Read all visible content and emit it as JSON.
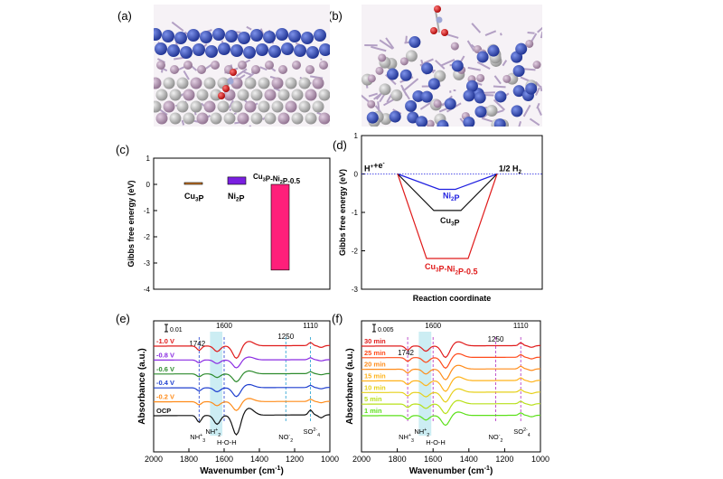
{
  "panels": {
    "a": {
      "label": "(a)"
    },
    "b": {
      "label": "(b)"
    }
  },
  "colors": {
    "cu_atom": "#2b47b5",
    "ni_atom": "#c2c2c2",
    "p_atom": "#b89cb8",
    "o_atom": "#e01b1b",
    "n_atom": "#8c9cc8"
  },
  "chart_data": [
    {
      "panel": "(c)",
      "type": "bar",
      "ylabel": "Gibbs free energy (eV)",
      "ylim": [
        -4,
        1
      ],
      "yticks": [
        -4,
        -3,
        -2,
        -1,
        0,
        1
      ],
      "categories": [
        "Cu3P",
        "Ni2P",
        "Cu3P-Ni2P-0.5"
      ],
      "category_labels": [
        {
          "main": "Cu",
          "sub": "3",
          "tail": "P"
        },
        {
          "main": "Ni",
          "sub": "2",
          "tail": "P"
        },
        {
          "main": "Cu",
          "sub": "3",
          "mid": "P-Ni",
          "sub2": "2",
          "tail": "P-0.5"
        }
      ],
      "values": [
        0.06,
        0.28,
        -3.27
      ],
      "bar_colors": [
        "#d9802a",
        "#7a1fe0",
        "#ff1f7a"
      ]
    },
    {
      "panel": "(d)",
      "type": "line",
      "ylabel": "Gibbs free energy (eV)",
      "xlabel": "Reaction coordinate",
      "ylim": [
        -3,
        1
      ],
      "yticks": [
        -3,
        -2,
        -1,
        0,
        1
      ],
      "start_label": {
        "main": "H",
        "sup": "+",
        "tail": "+e",
        "sup2": "-"
      },
      "end_label": {
        "main": "1/2 H",
        "sub": "2"
      },
      "series": [
        {
          "name": {
            "main": "Ni",
            "sub": "2",
            "tail": "P"
          },
          "color": "#1f1fe0",
          "min": -0.4
        },
        {
          "name": {
            "main": "Cu",
            "sub": "3",
            "tail": "P"
          },
          "color": "#111111",
          "min": -0.95
        },
        {
          "name": {
            "main": "Cu",
            "sub": "3",
            "mid": "P-Ni",
            "sub2": "2",
            "tail": "P-0.5"
          },
          "color": "#e01b1b",
          "min": -2.2
        }
      ]
    },
    {
      "panel": "(e)",
      "type": "line",
      "ylabel": "Absorbance (a.u.)",
      "xlabel": "Wavenumber (cm",
      "xlabel_sup": "-1",
      "xlabel_tail": ")",
      "xlim": [
        2000,
        1000
      ],
      "xticks": [
        2000,
        1800,
        1600,
        1400,
        1200,
        1000
      ],
      "scale_label": "0.01",
      "peak_labels": [
        "1742",
        "1600",
        "1250",
        "1110"
      ],
      "series": [
        {
          "name": "-1.0 V",
          "color": "#e01b1b"
        },
        {
          "name": "-0.8 V",
          "color": "#8a2be2"
        },
        {
          "name": "-0.6 V",
          "color": "#2e8b2e"
        },
        {
          "name": "-0.4 V",
          "color": "#1f3fcf"
        },
        {
          "name": "-0.2 V",
          "color": "#ff8c1a"
        },
        {
          "name": "OCP",
          "color": "#111111"
        }
      ],
      "bottom_labels": {
        "nh3": {
          "main": "NH",
          "sub": "3",
          "sup": "+"
        },
        "nh2": {
          "main": "NH",
          "sub": "2",
          "sup": "+"
        },
        "hoh": "H-O-H",
        "no2": {
          "main": "NO",
          "sub": "2",
          "sup": "-"
        },
        "so4": {
          "main": "SO",
          "sub": "4",
          "sup": "2-"
        }
      }
    },
    {
      "panel": "(f)",
      "type": "line",
      "ylabel": "Absorbance (a.u.)",
      "xlabel": "Wavenumber (cm",
      "xlabel_sup": "-1",
      "xlabel_tail": ")",
      "xlim": [
        2000,
        1000
      ],
      "xticks": [
        2000,
        1800,
        1600,
        1400,
        1200,
        1000
      ],
      "scale_label": "0.005",
      "peak_labels": [
        "1742",
        "1600",
        "1250",
        "1110"
      ],
      "series": [
        {
          "name": "30 min",
          "color": "#e01b1b"
        },
        {
          "name": "25 min",
          "color": "#ff4a1a"
        },
        {
          "name": "20 min",
          "color": "#ff8c1a"
        },
        {
          "name": "15 min",
          "color": "#ffb31a"
        },
        {
          "name": "10 min",
          "color": "#e6d01a"
        },
        {
          "name": "5 min",
          "color": "#b8e01a"
        },
        {
          "name": "1 min",
          "color": "#5ce01a"
        }
      ],
      "bottom_labels": {
        "nh3": {
          "main": "NH",
          "sub": "3",
          "sup": "+"
        },
        "nh2": {
          "main": "NH",
          "sub": "2",
          "sup": "+"
        },
        "hoh": "H-O-H",
        "no2": {
          "main": "NO",
          "sub": "2",
          "sup": "-"
        },
        "so4": {
          "main": "SO",
          "sub": "4",
          "sup": "2-"
        }
      }
    }
  ]
}
